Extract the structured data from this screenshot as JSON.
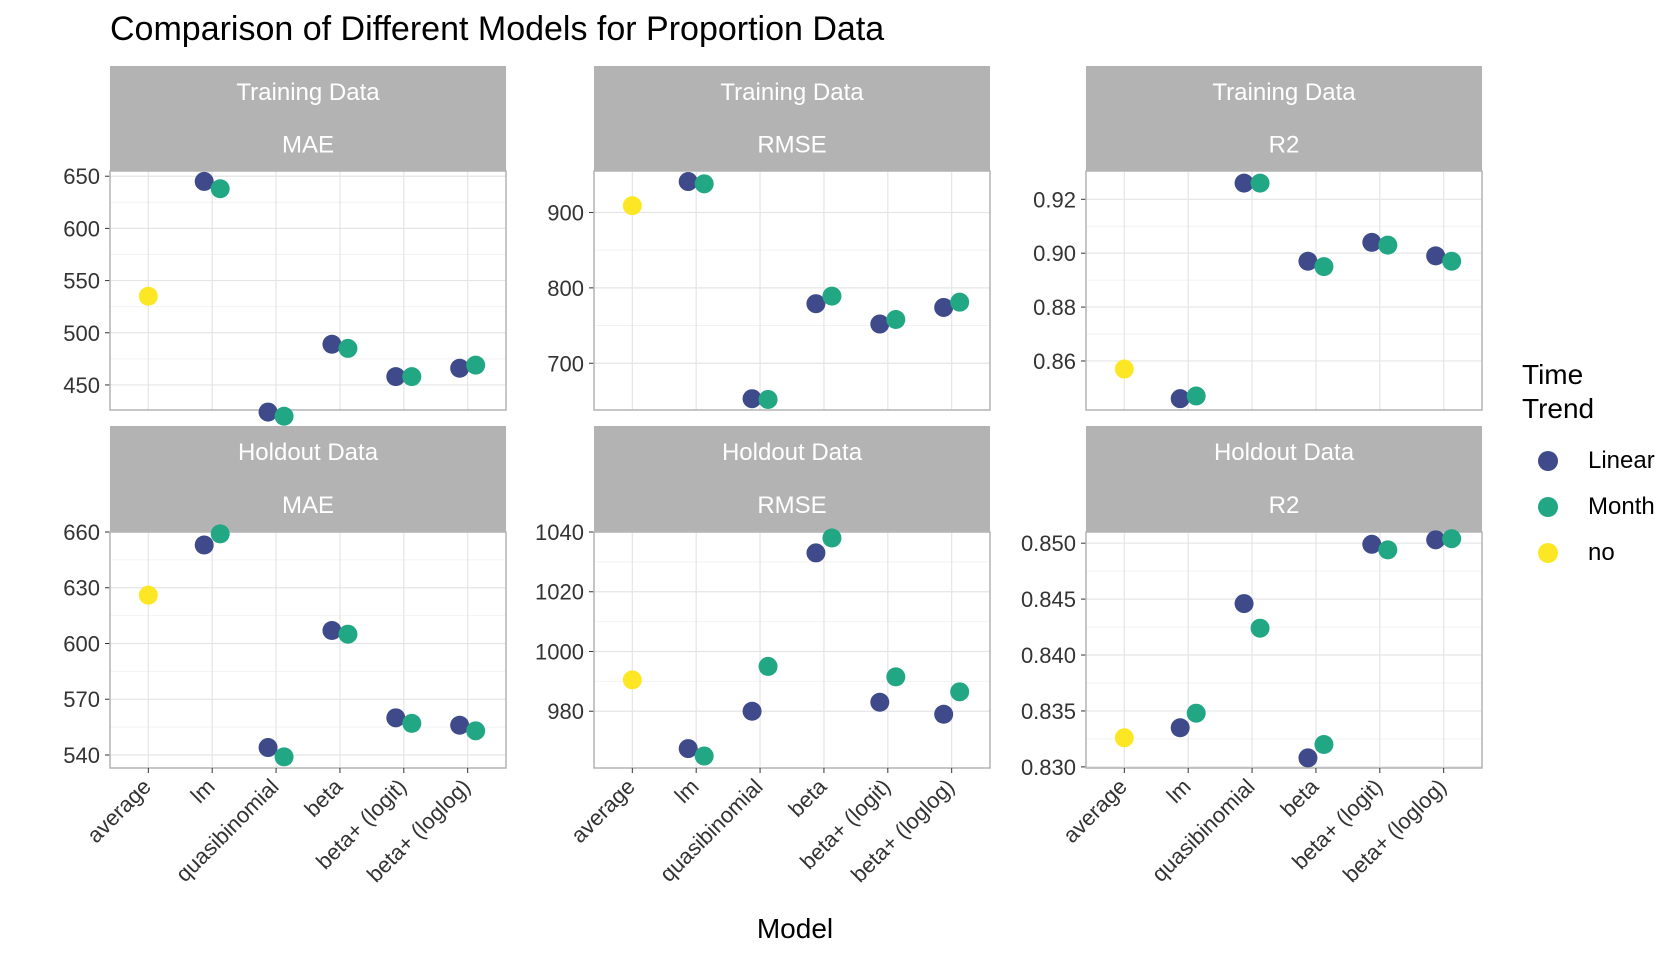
{
  "chart_data": {
    "type": "scatter",
    "title": "Comparison of Different Models for Proportion Data",
    "xlabel": "Model",
    "categories": [
      "average",
      "lm",
      "quasibinomial",
      "beta",
      "beta+ (logit)",
      "beta+ (loglog)"
    ],
    "legend": {
      "title_lines": [
        "Time",
        "Trend"
      ],
      "placement": "right",
      "items": [
        {
          "label": "Linear",
          "color": "#3E4A89"
        },
        {
          "label": "Month",
          "color": "#21A784"
        },
        {
          "label": "no",
          "color": "#FDE725"
        }
      ]
    },
    "panels": [
      {
        "row": "Training Data",
        "metric": "MAE",
        "ylim": [
          426,
          655
        ],
        "yticks": [
          450,
          500,
          550,
          600,
          650
        ],
        "points": [
          {
            "x": "average",
            "series": "no",
            "y": 535
          },
          {
            "x": "lm",
            "series": "Linear",
            "y": 645
          },
          {
            "x": "lm",
            "series": "Month",
            "y": 638
          },
          {
            "x": "quasibinomial",
            "series": "Linear",
            "y": 424
          },
          {
            "x": "quasibinomial",
            "series": "Month",
            "y": 420
          },
          {
            "x": "beta",
            "series": "Linear",
            "y": 489
          },
          {
            "x": "beta",
            "series": "Month",
            "y": 485
          },
          {
            "x": "beta+ (logit)",
            "series": "Linear",
            "y": 458
          },
          {
            "x": "beta+ (logit)",
            "series": "Month",
            "y": 458
          },
          {
            "x": "beta+ (loglog)",
            "series": "Linear",
            "y": 466
          },
          {
            "x": "beta+ (loglog)",
            "series": "Month",
            "y": 469
          }
        ]
      },
      {
        "row": "Training Data",
        "metric": "RMSE",
        "ylim": [
          638,
          955
        ],
        "yticks": [
          700,
          800,
          900
        ],
        "points": [
          {
            "x": "average",
            "series": "no",
            "y": 909
          },
          {
            "x": "lm",
            "series": "Linear",
            "y": 941
          },
          {
            "x": "lm",
            "series": "Month",
            "y": 938
          },
          {
            "x": "quasibinomial",
            "series": "Linear",
            "y": 653
          },
          {
            "x": "quasibinomial",
            "series": "Month",
            "y": 652
          },
          {
            "x": "beta",
            "series": "Linear",
            "y": 779
          },
          {
            "x": "beta",
            "series": "Month",
            "y": 789
          },
          {
            "x": "beta+ (logit)",
            "series": "Linear",
            "y": 752
          },
          {
            "x": "beta+ (logit)",
            "series": "Month",
            "y": 758
          },
          {
            "x": "beta+ (loglog)",
            "series": "Linear",
            "y": 774
          },
          {
            "x": "beta+ (loglog)",
            "series": "Month",
            "y": 781
          }
        ]
      },
      {
        "row": "Training Data",
        "metric": "R2",
        "ylim": [
          0.8418,
          0.9305
        ],
        "yticks": [
          0.86,
          0.88,
          0.9,
          0.92
        ],
        "decimals": 2,
        "points": [
          {
            "x": "average",
            "series": "no",
            "y": 0.857
          },
          {
            "x": "lm",
            "series": "Linear",
            "y": 0.846
          },
          {
            "x": "lm",
            "series": "Month",
            "y": 0.847
          },
          {
            "x": "quasibinomial",
            "series": "Linear",
            "y": 0.926
          },
          {
            "x": "quasibinomial",
            "series": "Month",
            "y": 0.926
          },
          {
            "x": "beta",
            "series": "Linear",
            "y": 0.897
          },
          {
            "x": "beta",
            "series": "Month",
            "y": 0.895
          },
          {
            "x": "beta+ (logit)",
            "series": "Linear",
            "y": 0.904
          },
          {
            "x": "beta+ (logit)",
            "series": "Month",
            "y": 0.903
          },
          {
            "x": "beta+ (loglog)",
            "series": "Linear",
            "y": 0.899
          },
          {
            "x": "beta+ (loglog)",
            "series": "Month",
            "y": 0.897
          }
        ]
      },
      {
        "row": "Holdout Data",
        "metric": "MAE",
        "ylim": [
          533,
          660
        ],
        "yticks": [
          540,
          570,
          600,
          630,
          660
        ],
        "points": [
          {
            "x": "average",
            "series": "no",
            "y": 626
          },
          {
            "x": "lm",
            "series": "Linear",
            "y": 653
          },
          {
            "x": "lm",
            "series": "Month",
            "y": 659
          },
          {
            "x": "quasibinomial",
            "series": "Linear",
            "y": 544
          },
          {
            "x": "quasibinomial",
            "series": "Month",
            "y": 539
          },
          {
            "x": "beta",
            "series": "Linear",
            "y": 607
          },
          {
            "x": "beta",
            "series": "Month",
            "y": 605
          },
          {
            "x": "beta+ (logit)",
            "series": "Linear",
            "y": 560
          },
          {
            "x": "beta+ (logit)",
            "series": "Month",
            "y": 557
          },
          {
            "x": "beta+ (loglog)",
            "series": "Linear",
            "y": 556
          },
          {
            "x": "beta+ (loglog)",
            "series": "Month",
            "y": 553
          }
        ]
      },
      {
        "row": "Holdout Data",
        "metric": "RMSE",
        "ylim": [
          961,
          1040
        ],
        "yticks": [
          980,
          1000,
          1020,
          1040
        ],
        "points": [
          {
            "x": "average",
            "series": "no",
            "y": 990.5
          },
          {
            "x": "lm",
            "series": "Linear",
            "y": 967.5
          },
          {
            "x": "lm",
            "series": "Month",
            "y": 965
          },
          {
            "x": "quasibinomial",
            "series": "Linear",
            "y": 980
          },
          {
            "x": "quasibinomial",
            "series": "Month",
            "y": 995
          },
          {
            "x": "beta",
            "series": "Linear",
            "y": 1033
          },
          {
            "x": "beta",
            "series": "Month",
            "y": 1038
          },
          {
            "x": "beta+ (logit)",
            "series": "Linear",
            "y": 983
          },
          {
            "x": "beta+ (logit)",
            "series": "Month",
            "y": 991.5
          },
          {
            "x": "beta+ (loglog)",
            "series": "Linear",
            "y": 979
          },
          {
            "x": "beta+ (loglog)",
            "series": "Month",
            "y": 986.5
          }
        ]
      },
      {
        "row": "Holdout Data",
        "metric": "R2",
        "ylim": [
          0.8299,
          0.851
        ],
        "yticks": [
          0.83,
          0.835,
          0.84,
          0.845,
          0.85
        ],
        "decimals": 3,
        "points": [
          {
            "x": "average",
            "series": "no",
            "y": 0.8326
          },
          {
            "x": "lm",
            "series": "Linear",
            "y": 0.8335
          },
          {
            "x": "lm",
            "series": "Month",
            "y": 0.8348
          },
          {
            "x": "quasibinomial",
            "series": "Linear",
            "y": 0.8446
          },
          {
            "x": "quasibinomial",
            "series": "Month",
            "y": 0.8424
          },
          {
            "x": "beta",
            "series": "Linear",
            "y": 0.8308
          },
          {
            "x": "beta",
            "series": "Month",
            "y": 0.832
          },
          {
            "x": "beta+ (logit)",
            "series": "Linear",
            "y": 0.8499
          },
          {
            "x": "beta+ (logit)",
            "series": "Month",
            "y": 0.8494
          },
          {
            "x": "beta+ (loglog)",
            "series": "Linear",
            "y": 0.8503
          },
          {
            "x": "beta+ (loglog)",
            "series": "Month",
            "y": 0.8504
          }
        ]
      }
    ]
  }
}
